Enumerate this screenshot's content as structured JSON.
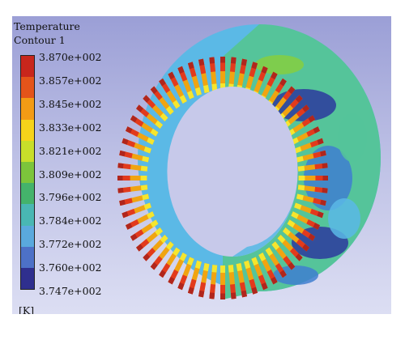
{
  "legend": {
    "title_line1": "Temperature",
    "title_line2": "Contour 1",
    "ticks": [
      "3.870e+002",
      "3.857e+002",
      "3.845e+002",
      "3.833e+002",
      "3.821e+002",
      "3.809e+002",
      "3.796e+002",
      "3.784e+002",
      "3.772e+002",
      "3.760e+002",
      "3.747e+002"
    ],
    "unit": "[K]",
    "colors": [
      "#c8261c",
      "#e4541a",
      "#f39b15",
      "#f6d31a",
      "#c8de2a",
      "#7cc53b",
      "#44b36b",
      "#49b7b3",
      "#5aa9dd",
      "#4d71c7",
      "#2f2f8e"
    ]
  },
  "model": {
    "fin_count": 60,
    "fin_colors": [
      "#b0261d",
      "#e23a1d",
      "#f0a411",
      "#f5e62e"
    ],
    "body_colors": [
      "#2d3a9e",
      "#3f7fd0",
      "#5bb9e6",
      "#55c49a",
      "#86cf3f",
      "#c8e12f"
    ]
  }
}
